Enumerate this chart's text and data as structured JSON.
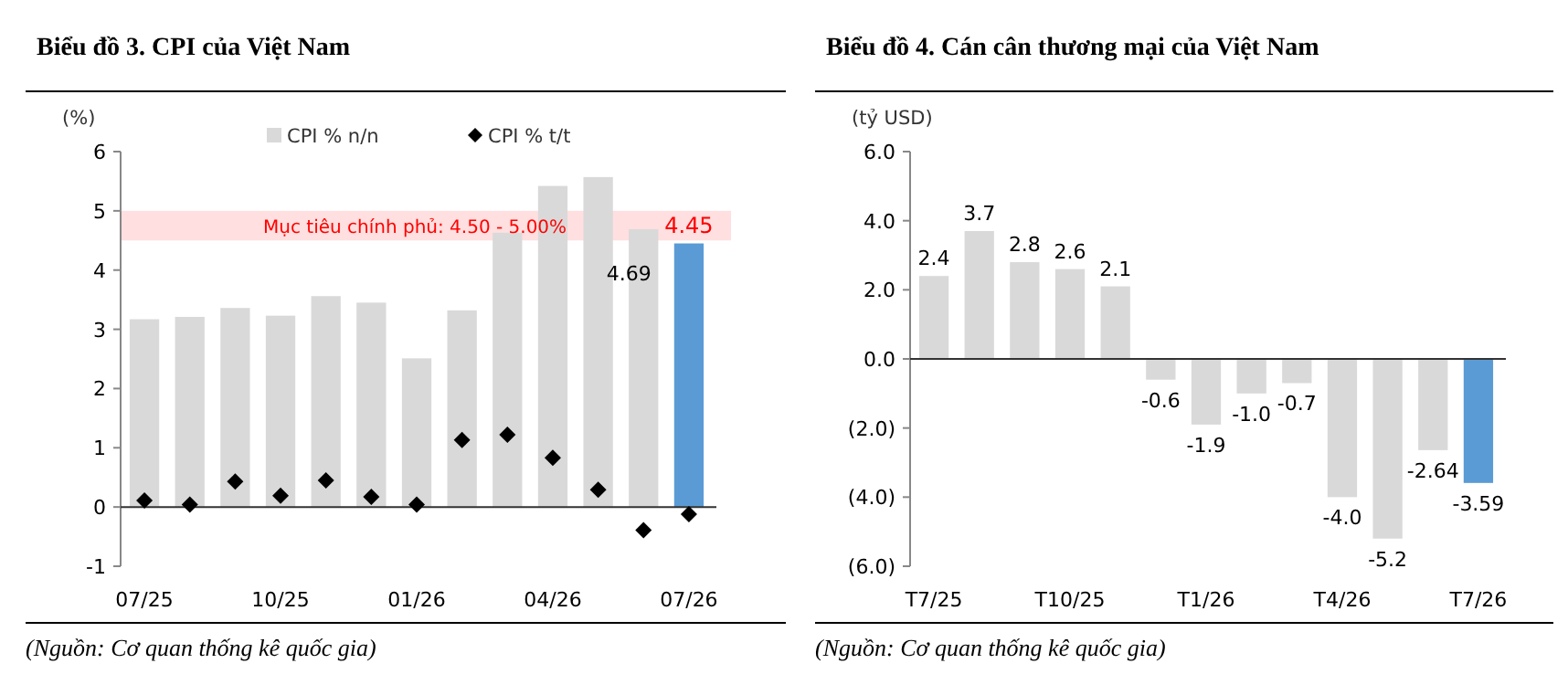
{
  "chart_data": [
    {
      "type": "bar",
      "title": "Biểu đồ 3. CPI của Việt Nam",
      "ylabel": "(%)",
      "categories": [
        "07/25",
        null,
        null,
        "10/25",
        null,
        null,
        "01/26",
        null,
        null,
        "04/26",
        null,
        null,
        "07/26"
      ],
      "series": [
        {
          "name": "CPI % n/n",
          "colors": [
            "#d9d9d9",
            "#d9d9d9",
            "#d9d9d9",
            "#d9d9d9",
            "#d9d9d9",
            "#d9d9d9",
            "#d9d9d9",
            "#d9d9d9",
            "#d9d9d9",
            "#d9d9d9",
            "#d9d9d9",
            "#d9d9d9",
            "#5b9bd5"
          ],
          "values": [
            3.17,
            3.21,
            3.36,
            3.23,
            3.56,
            3.45,
            2.51,
            3.32,
            4.63,
            5.42,
            5.57,
            4.69,
            4.45
          ],
          "value_labels": [
            null,
            null,
            null,
            null,
            null,
            null,
            null,
            null,
            null,
            null,
            null,
            "4.69",
            "4.45"
          ]
        },
        {
          "name": "CPI % t/t",
          "type": "scatter",
          "marker": "diamond",
          "color": "#000000",
          "values": [
            0.11,
            0.04,
            0.43,
            0.19,
            0.45,
            0.17,
            0.04,
            1.13,
            1.22,
            0.83,
            0.29,
            -0.39,
            -0.12
          ]
        }
      ],
      "ylim": [
        -1,
        6
      ],
      "yticks": [
        -1,
        0,
        1,
        2,
        3,
        4,
        5,
        6
      ],
      "legend": "top",
      "bands": [
        {
          "axis": "y",
          "from": 4.5,
          "to": 5.0,
          "label": "Mục tiêu chính phủ: 4.50 - 5.00%",
          "color": "#ffd9d9"
        }
      ],
      "annotations": [
        "(Nguồn: Cơ quan thống kê quốc gia)"
      ]
    },
    {
      "type": "bar",
      "title": "Biểu đồ 4. Cán cân thương mại của Việt Nam",
      "ylabel": "(tỷ USD)",
      "categories": [
        "T7/25",
        null,
        null,
        "T10/25",
        null,
        null,
        "T1/26",
        null,
        null,
        "T4/26",
        null,
        null,
        "T7/26"
      ],
      "series": [
        {
          "colors": [
            "#d9d9d9",
            "#d9d9d9",
            "#d9d9d9",
            "#d9d9d9",
            "#d9d9d9",
            "#d9d9d9",
            "#d9d9d9",
            "#d9d9d9",
            "#d9d9d9",
            "#d9d9d9",
            "#d9d9d9",
            "#d9d9d9",
            "#5b9bd5"
          ],
          "values": [
            2.4,
            3.7,
            2.8,
            2.6,
            2.1,
            -0.6,
            -1.9,
            -1.0,
            -0.7,
            -4.0,
            -5.2,
            -2.64,
            -3.59
          ],
          "value_labels": [
            "2.4",
            "3.7",
            "2.8",
            "2.6",
            "2.1",
            "-0.6",
            "-1.9",
            "-1.0",
            "-0.7",
            "-4.0",
            "-5.2",
            "-2.64",
            "-3.59"
          ]
        }
      ],
      "ylim": [
        -6,
        6
      ],
      "yticks": [
        {
          "value": -6,
          "label": "(6.0)"
        },
        {
          "value": -4,
          "label": "(4.0)"
        },
        {
          "value": -2,
          "label": "(2.0)"
        },
        {
          "value": 0,
          "label": "0.0"
        },
        {
          "value": 2,
          "label": "2.0"
        },
        {
          "value": 4,
          "label": "4.0"
        },
        {
          "value": 6,
          "label": "6.0"
        }
      ],
      "legend": false,
      "annotations": [
        "(Nguồn: Cơ quan thống kê quốc gia)"
      ]
    }
  ]
}
